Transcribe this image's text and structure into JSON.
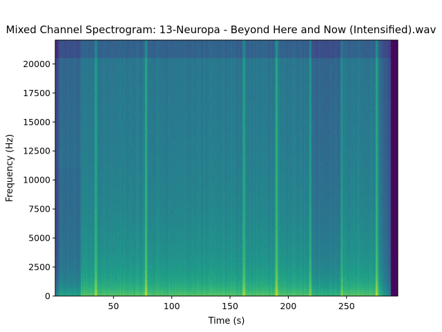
{
  "chart_data": {
    "type": "heatmap",
    "title": "Mixed Channel Spectrogram: 13-Neuropa - Beyond Here and Now (Intensified).wav",
    "xlabel": "Time (s)",
    "ylabel": "Frequency (Hz)",
    "xlim": [
      0,
      294
    ],
    "ylim": [
      0,
      22050
    ],
    "xticks": [
      50,
      100,
      150,
      200,
      250
    ],
    "yticks": [
      0,
      2500,
      5000,
      7500,
      10000,
      12500,
      15000,
      17500,
      20000
    ],
    "colormap": "viridis",
    "audio_end_s": 288,
    "transients_s": [
      35,
      78,
      162,
      190,
      219,
      246,
      276
    ],
    "quiet_sections_s": [
      [
        0,
        22
      ],
      [
        219,
        247
      ]
    ],
    "grid": false,
    "legend": "none"
  }
}
